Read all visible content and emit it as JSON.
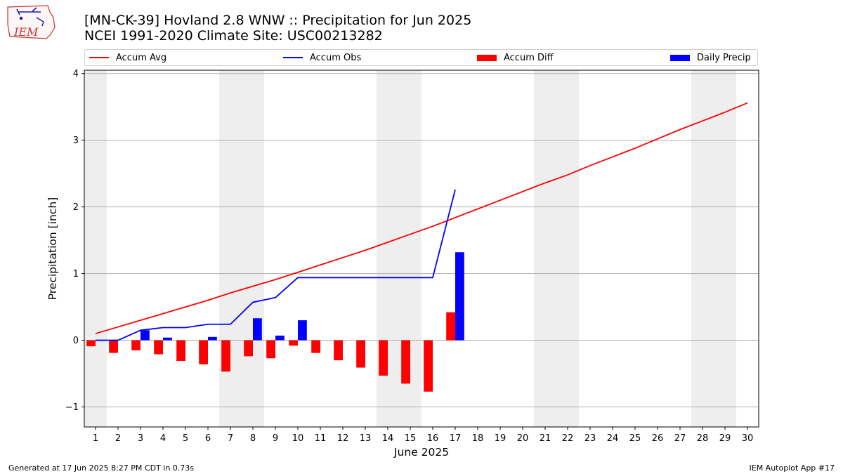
{
  "page": {
    "logo_text": "IEM",
    "title_line1": "[MN-CK-39] Hovland 2.8 WNW :: Precipitation for Jun 2025",
    "title_line2": "NCEI 1991-2020 Climate Site: USC00213282",
    "footer_left": "Generated at 17 Jun 2025 8:27 PM CDT in 0.73s",
    "footer_right": "IEM Autoplot App #17"
  },
  "legend": [
    {
      "label": "Accum Avg",
      "kind": "line",
      "color": "#ff0000"
    },
    {
      "label": "Accum Obs",
      "kind": "line",
      "color": "#0000ff"
    },
    {
      "label": "Accum Diff",
      "kind": "bar",
      "color": "#ff0000"
    },
    {
      "label": "Daily Precip",
      "kind": "bar",
      "color": "#0000ff"
    }
  ],
  "chart_data": {
    "type": "bar",
    "xlabel": "June 2025",
    "ylabel": "Precipitation [inch]",
    "xlim": [
      0.5,
      30.5
    ],
    "ylim": [
      -1.3,
      4.05
    ],
    "y_ticks": [
      -1,
      0,
      1,
      2,
      3,
      4
    ],
    "y_tick_labels": [
      "−1",
      "0",
      "1",
      "2",
      "3",
      "4"
    ],
    "x_ticks": [
      1,
      2,
      3,
      4,
      5,
      6,
      7,
      8,
      9,
      10,
      11,
      12,
      13,
      14,
      15,
      16,
      17,
      18,
      19,
      20,
      21,
      22,
      23,
      24,
      25,
      26,
      27,
      28,
      29,
      30
    ],
    "weekend_bands": [
      [
        0.5,
        1.5
      ],
      [
        6.5,
        8.5
      ],
      [
        13.5,
        15.5
      ],
      [
        20.5,
        22.5
      ],
      [
        27.5,
        29.5
      ]
    ],
    "grid": "horizontal",
    "series": [
      {
        "name": "Accum Avg",
        "type": "line",
        "color": "#ff0000",
        "x": [
          1,
          2,
          3,
          4,
          5,
          6,
          7,
          8,
          9,
          10,
          11,
          12,
          13,
          14,
          15,
          16,
          17,
          18,
          19,
          20,
          21,
          22,
          23,
          24,
          25,
          26,
          27,
          28,
          29,
          30
        ],
        "values": [
          0.1,
          0.2,
          0.3,
          0.4,
          0.5,
          0.6,
          0.71,
          0.81,
          0.91,
          1.02,
          1.13,
          1.24,
          1.35,
          1.47,
          1.59,
          1.71,
          1.84,
          1.97,
          2.1,
          2.23,
          2.36,
          2.48,
          2.62,
          2.75,
          2.88,
          3.02,
          3.16,
          3.29,
          3.42,
          3.56
        ]
      },
      {
        "name": "Accum Obs",
        "type": "line",
        "color": "#0000ff",
        "x": [
          1,
          2,
          3,
          4,
          5,
          6,
          7,
          8,
          9,
          10,
          11,
          12,
          13,
          14,
          15,
          16,
          17
        ],
        "values": [
          0.0,
          0.0,
          0.15,
          0.19,
          0.19,
          0.24,
          0.24,
          0.57,
          0.64,
          0.94,
          0.94,
          0.94,
          0.94,
          0.94,
          0.94,
          0.94,
          2.26
        ]
      },
      {
        "name": "Accum Diff",
        "type": "bar",
        "color": "#ff0000",
        "offset": -0.2,
        "x": [
          1,
          2,
          3,
          4,
          5,
          6,
          7,
          8,
          9,
          10,
          11,
          12,
          13,
          14,
          15,
          16,
          17
        ],
        "values": [
          -0.09,
          -0.19,
          -0.15,
          -0.21,
          -0.31,
          -0.36,
          -0.47,
          -0.24,
          -0.27,
          -0.08,
          -0.19,
          -0.3,
          -0.41,
          -0.53,
          -0.65,
          -0.77,
          0.42
        ]
      },
      {
        "name": "Daily Precip",
        "type": "bar",
        "color": "#0000ff",
        "offset": 0.2,
        "x": [
          1,
          2,
          3,
          4,
          5,
          6,
          7,
          8,
          9,
          10,
          11,
          12,
          13,
          14,
          15,
          16,
          17
        ],
        "values": [
          0.0,
          0.0,
          0.15,
          0.04,
          0.0,
          0.05,
          0.0,
          0.33,
          0.07,
          0.3,
          0.0,
          0.0,
          0.0,
          0.0,
          0.0,
          0.0,
          1.32
        ]
      }
    ]
  }
}
